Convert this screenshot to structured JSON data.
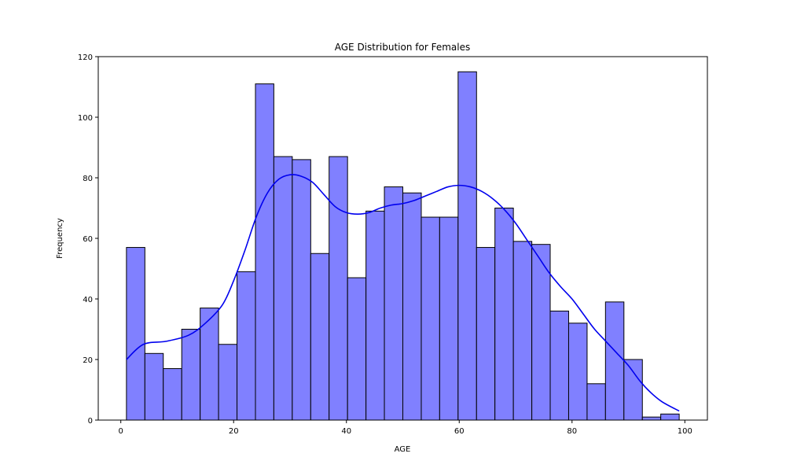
{
  "chart_data": {
    "type": "bar",
    "title": "AGE Distribution for Females",
    "xlabel": "AGE",
    "ylabel": "Frequency",
    "xlim": [
      -4,
      104
    ],
    "ylim": [
      0,
      120
    ],
    "xticks": [
      0,
      20,
      40,
      60,
      80,
      100
    ],
    "yticks": [
      0,
      20,
      40,
      60,
      80,
      100,
      120
    ],
    "bins": [
      {
        "x0": 1.0,
        "x1": 4.27,
        "count": 57
      },
      {
        "x0": 4.27,
        "x1": 7.53,
        "count": 22
      },
      {
        "x0": 7.53,
        "x1": 10.8,
        "count": 17
      },
      {
        "x0": 10.8,
        "x1": 14.07,
        "count": 30
      },
      {
        "x0": 14.07,
        "x1": 17.33,
        "count": 37
      },
      {
        "x0": 17.33,
        "x1": 20.6,
        "count": 25
      },
      {
        "x0": 20.6,
        "x1": 23.87,
        "count": 49
      },
      {
        "x0": 23.87,
        "x1": 27.13,
        "count": 111
      },
      {
        "x0": 27.13,
        "x1": 30.4,
        "count": 87
      },
      {
        "x0": 30.4,
        "x1": 33.67,
        "count": 86
      },
      {
        "x0": 33.67,
        "x1": 36.93,
        "count": 55
      },
      {
        "x0": 36.93,
        "x1": 40.2,
        "count": 87
      },
      {
        "x0": 40.2,
        "x1": 43.47,
        "count": 47
      },
      {
        "x0": 43.47,
        "x1": 46.73,
        "count": 69
      },
      {
        "x0": 46.73,
        "x1": 50.0,
        "count": 77
      },
      {
        "x0": 50.0,
        "x1": 53.27,
        "count": 75
      },
      {
        "x0": 53.27,
        "x1": 56.53,
        "count": 67
      },
      {
        "x0": 56.53,
        "x1": 59.8,
        "count": 67
      },
      {
        "x0": 59.8,
        "x1": 63.07,
        "count": 115
      },
      {
        "x0": 63.07,
        "x1": 66.33,
        "count": 57
      },
      {
        "x0": 66.33,
        "x1": 69.6,
        "count": 70
      },
      {
        "x0": 69.6,
        "x1": 72.87,
        "count": 59
      },
      {
        "x0": 72.87,
        "x1": 76.13,
        "count": 58
      },
      {
        "x0": 76.13,
        "x1": 79.4,
        "count": 36
      },
      {
        "x0": 79.4,
        "x1": 82.67,
        "count": 32
      },
      {
        "x0": 82.67,
        "x1": 85.93,
        "count": 12
      },
      {
        "x0": 85.93,
        "x1": 89.2,
        "count": 39
      },
      {
        "x0": 89.2,
        "x1": 92.47,
        "count": 20
      },
      {
        "x0": 92.47,
        "x1": 95.73,
        "count": 1
      },
      {
        "x0": 95.73,
        "x1": 99.0,
        "count": 2
      }
    ],
    "kde": {
      "x": [
        1,
        4,
        8,
        12,
        15,
        18,
        20,
        22,
        24,
        26,
        28,
        30,
        32,
        34,
        36,
        38,
        40,
        42,
        44,
        46,
        48,
        50,
        52,
        54,
        56,
        58,
        60,
        62,
        64,
        66,
        68,
        70,
        72,
        74,
        76,
        78,
        80,
        82,
        84,
        86,
        88,
        90,
        92,
        94,
        96,
        99
      ],
      "y": [
        20,
        25,
        26,
        28,
        32,
        38,
        46,
        56,
        67,
        75,
        79.5,
        81,
        80.5,
        78.5,
        74.5,
        70.5,
        68.5,
        68,
        68.5,
        70,
        71,
        71.5,
        72.5,
        74,
        75.5,
        77,
        77.5,
        77,
        75.5,
        73,
        69.5,
        65,
        59.5,
        54,
        48.5,
        44,
        40,
        35,
        30,
        26,
        22,
        18,
        13,
        9,
        6,
        3
      ]
    },
    "bar_fill": "#8080ff",
    "bar_edge": "#000000",
    "kde_color": "#0000ee",
    "grid": false,
    "legend": "none"
  }
}
